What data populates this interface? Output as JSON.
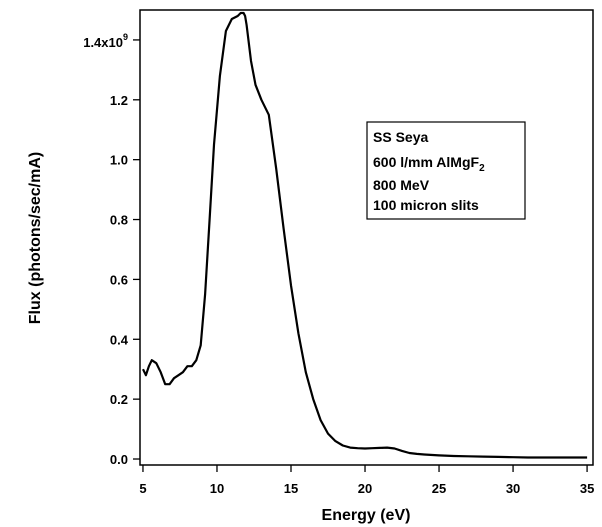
{
  "chart_data": {
    "type": "line",
    "xlabel": "Energy (eV)",
    "ylabel": "Flux (photons/sec/mA)",
    "xlim": [
      4.8,
      35.4
    ],
    "ylim": [
      -0.02,
      1.5
    ],
    "x_ticks": [
      5,
      10,
      15,
      20,
      25,
      30,
      35
    ],
    "x_tick_labels": [
      "5",
      "10",
      "15",
      "20",
      "25",
      "30",
      "35"
    ],
    "y_ticks": [
      0.0,
      0.2,
      0.4,
      0.6,
      0.8,
      1.0,
      1.2,
      1.4
    ],
    "y_tick_labels": [
      "0.0",
      "0.2",
      "0.4",
      "0.6",
      "0.8",
      "1.0",
      "1.2",
      ""
    ],
    "y_top_label": {
      "mantissa": "1.4x10",
      "exponent": "9"
    },
    "grid": false,
    "legend": {
      "placement": "top-right",
      "lines": [
        {
          "text": "SS Seya",
          "sub": ""
        },
        {
          "text": "600 l/mm AlMgF",
          "sub": "2"
        },
        {
          "text": "800 MeV",
          "sub": ""
        },
        {
          "text": "100 micron slits",
          "sub": ""
        }
      ]
    },
    "series": [
      {
        "color": "#000000",
        "x": [
          5.0,
          5.2,
          5.4,
          5.6,
          5.9,
          6.2,
          6.5,
          6.8,
          7.1,
          7.4,
          7.7,
          8.0,
          8.3,
          8.6,
          8.9,
          9.2,
          9.5,
          9.8,
          10.2,
          10.6,
          11.0,
          11.4,
          11.6,
          11.8,
          11.9,
          12.0,
          12.3,
          12.6,
          13.0,
          13.5,
          14.0,
          14.5,
          15.0,
          15.5,
          16.0,
          16.5,
          17.0,
          17.5,
          18.0,
          18.5,
          19.0,
          19.5,
          20.0,
          20.5,
          21.0,
          21.5,
          22.0,
          22.5,
          23.0,
          23.5,
          24.0,
          25.0,
          26.0,
          27.0,
          28.0,
          29.0,
          30.0,
          31.0,
          32.0,
          33.0,
          34.0,
          35.0
        ],
        "y": [
          0.3,
          0.28,
          0.31,
          0.33,
          0.32,
          0.29,
          0.25,
          0.25,
          0.27,
          0.28,
          0.29,
          0.31,
          0.31,
          0.33,
          0.38,
          0.55,
          0.8,
          1.05,
          1.28,
          1.43,
          1.47,
          1.48,
          1.49,
          1.49,
          1.48,
          1.45,
          1.33,
          1.25,
          1.2,
          1.15,
          0.97,
          0.77,
          0.58,
          0.42,
          0.29,
          0.2,
          0.13,
          0.085,
          0.06,
          0.045,
          0.038,
          0.036,
          0.035,
          0.036,
          0.037,
          0.038,
          0.035,
          0.027,
          0.02,
          0.017,
          0.015,
          0.012,
          0.01,
          0.009,
          0.008,
          0.007,
          0.006,
          0.005,
          0.005,
          0.005,
          0.005,
          0.005
        ]
      }
    ]
  }
}
